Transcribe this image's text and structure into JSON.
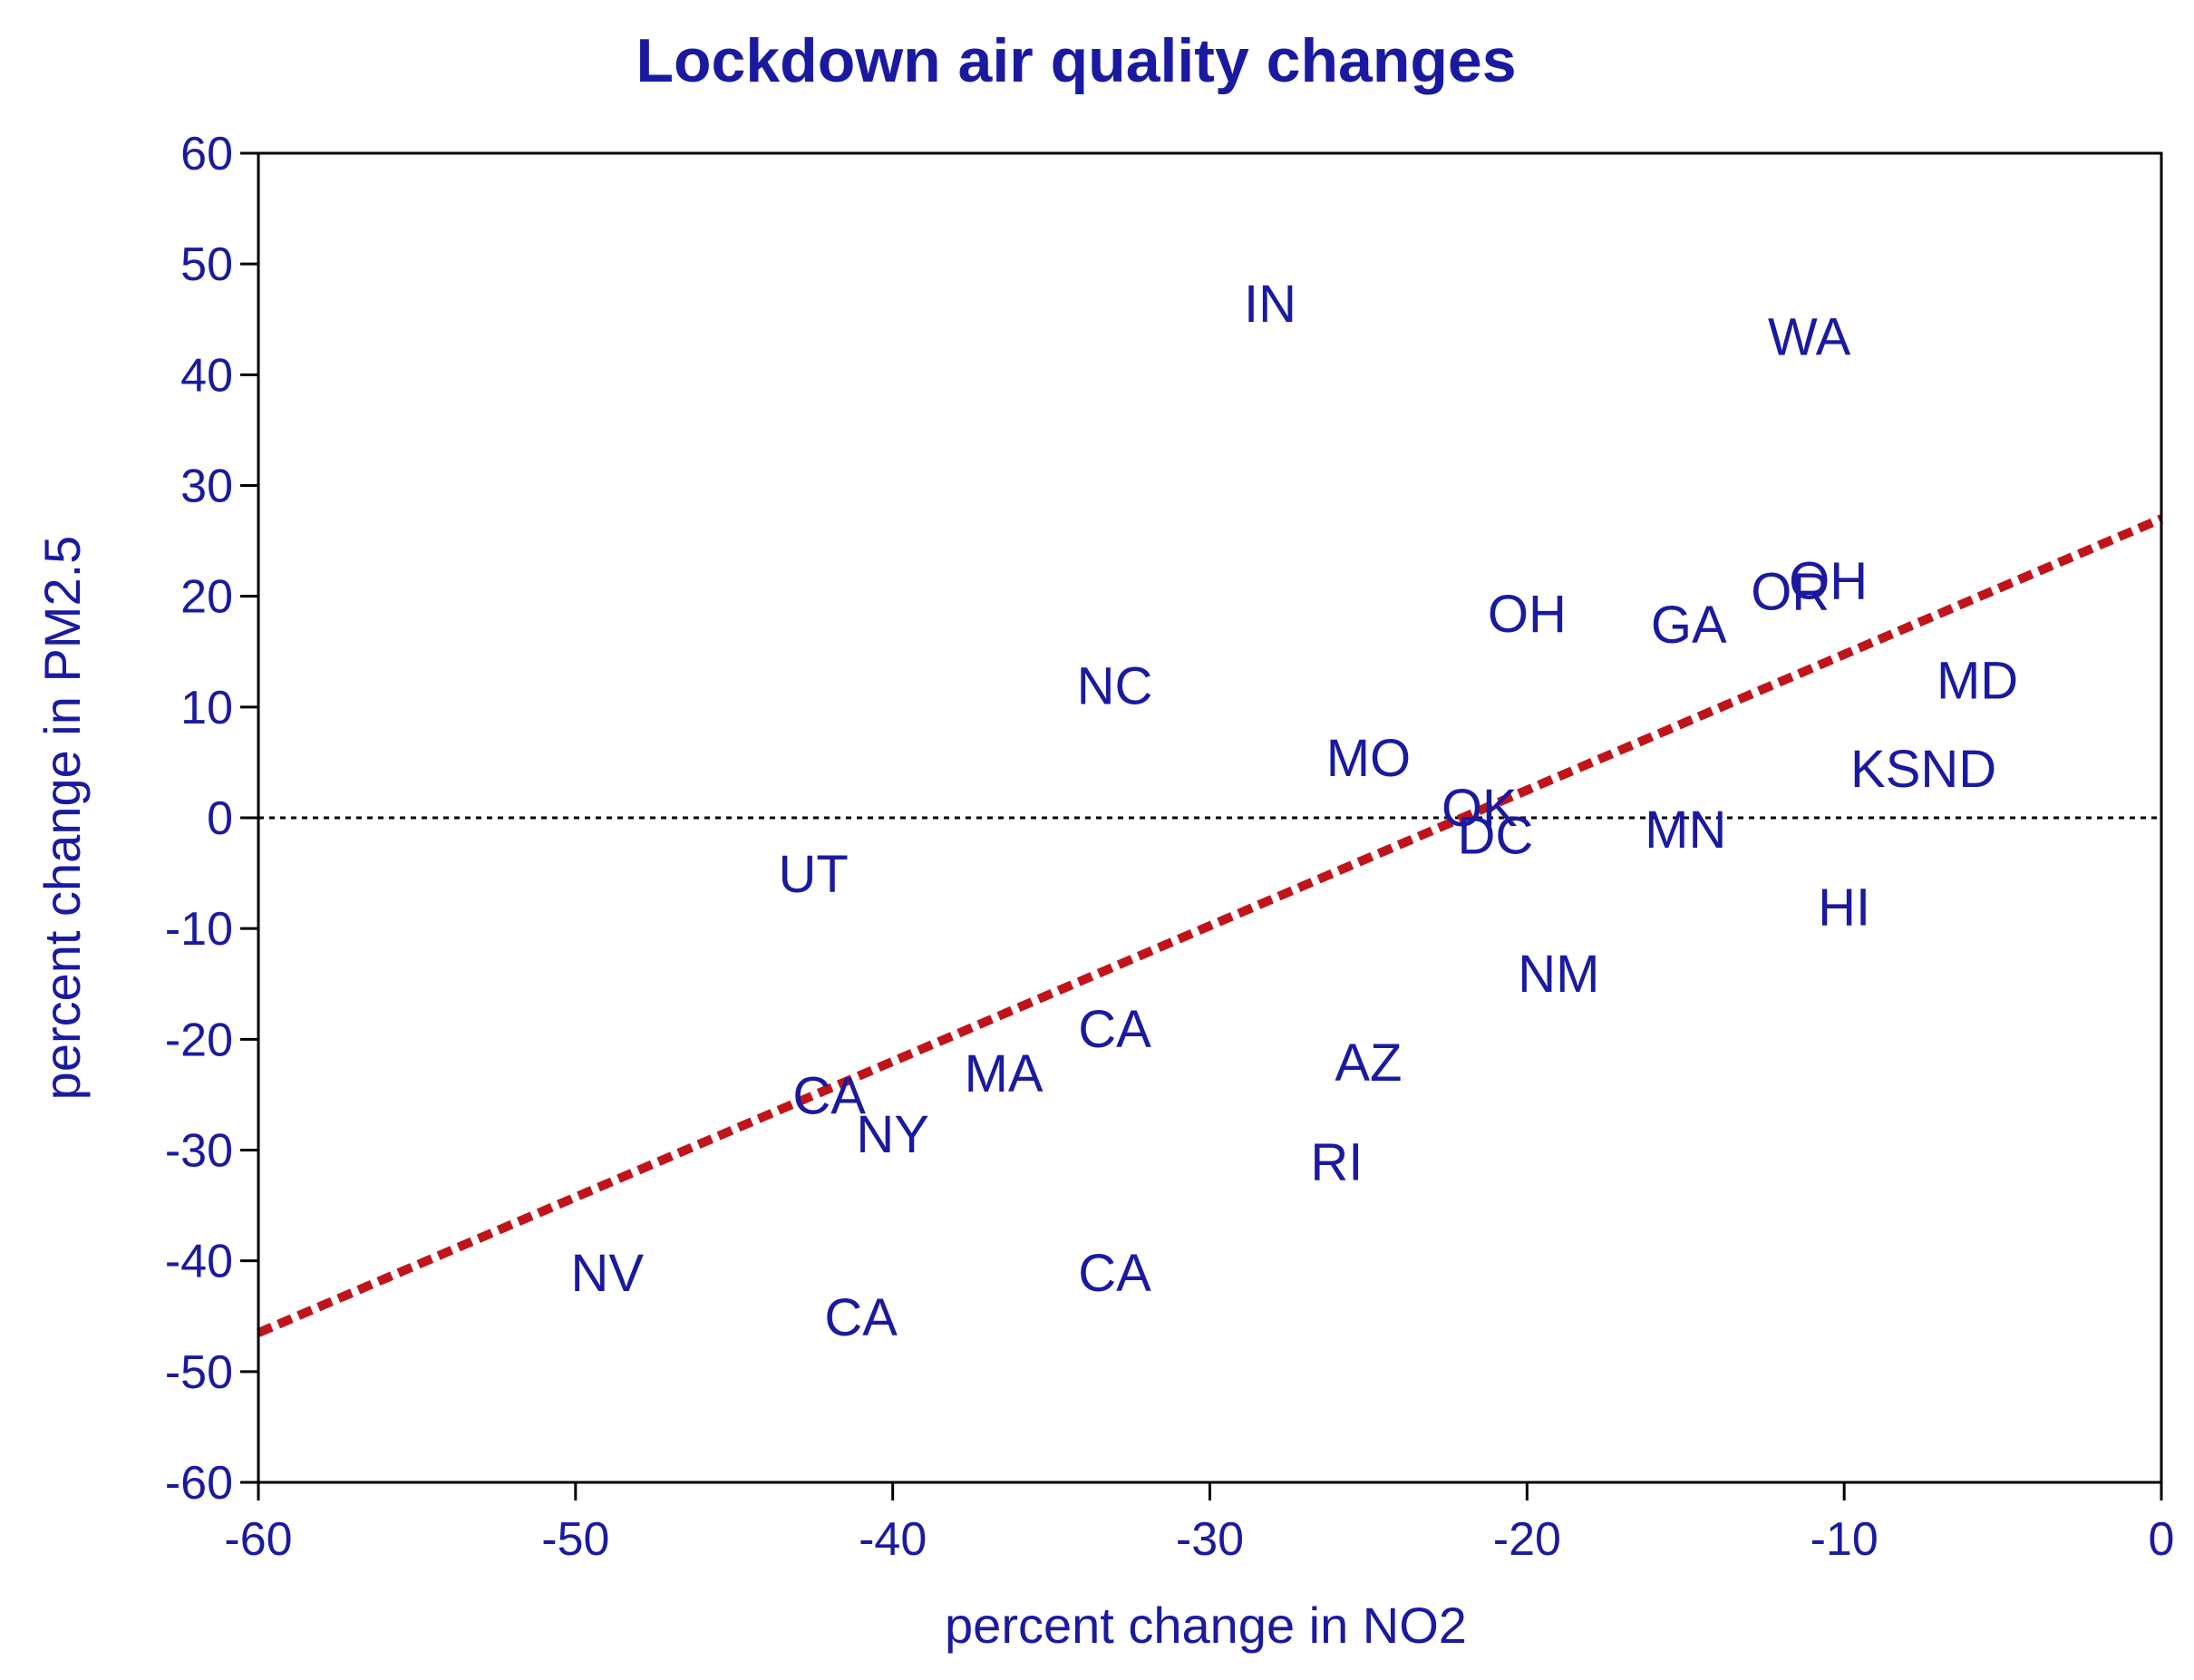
{
  "colors": {
    "text": "#1a1aa0",
    "axis": "#000000",
    "fit_line": "#c0141b",
    "zero_line": "#000000",
    "background": "#ffffff"
  },
  "chart_data": {
    "type": "scatter",
    "title": "Lockdown air quality changes",
    "xlabel": "percent change in NO2",
    "ylabel": "percent change in PM2.5",
    "xlim": [
      -60,
      0
    ],
    "ylim": [
      -60,
      60
    ],
    "xticks": [
      "-60",
      "-50",
      "-40",
      "-30",
      "-20",
      "-10",
      "0"
    ],
    "yticks": [
      "60",
      "50",
      "40",
      "30",
      "20",
      "10",
      "0",
      "-10",
      "-20",
      "-30",
      "-40",
      "-50",
      "-60"
    ],
    "grid": false,
    "marker": "state-abbreviation text labels",
    "points": [
      {
        "label": "IN",
        "x": -28.1,
        "y": 46.5
      },
      {
        "label": "WA",
        "x": -11.1,
        "y": 43.5
      },
      {
        "label": "OR",
        "x": -11.7,
        "y": 20.5
      },
      {
        "label": "OH",
        "x": -10.5,
        "y": 21.5
      },
      {
        "label": "OH",
        "x": -20.0,
        "y": 18.5
      },
      {
        "label": "GA",
        "x": -14.9,
        "y": 17.5
      },
      {
        "label": "MD",
        "x": -5.8,
        "y": 12.5
      },
      {
        "label": "NC",
        "x": -33.0,
        "y": 12.0
      },
      {
        "label": "KSND",
        "x": -7.5,
        "y": 4.5
      },
      {
        "label": "MO",
        "x": -25.0,
        "y": 5.5
      },
      {
        "label": "OK",
        "x": -21.5,
        "y": 1.0
      },
      {
        "label": "DC",
        "x": -21.0,
        "y": -1.5
      },
      {
        "label": "MN",
        "x": -15.0,
        "y": -1.0
      },
      {
        "label": "UT",
        "x": -42.5,
        "y": -5.0
      },
      {
        "label": "HI",
        "x": -10.0,
        "y": -8.0
      },
      {
        "label": "NM",
        "x": -19.0,
        "y": -14.0
      },
      {
        "label": "CA",
        "x": -33.0,
        "y": -19.0
      },
      {
        "label": "AZ",
        "x": -25.0,
        "y": -22.0
      },
      {
        "label": "MA",
        "x": -36.5,
        "y": -23.0
      },
      {
        "label": "CA",
        "x": -42.0,
        "y": -25.0
      },
      {
        "label": "NY",
        "x": -40.0,
        "y": -28.5
      },
      {
        "label": "RI",
        "x": -26.0,
        "y": -31.0
      },
      {
        "label": "NV",
        "x": -49.0,
        "y": -41.0
      },
      {
        "label": "CA",
        "x": -33.0,
        "y": -41.0
      },
      {
        "label": "CA",
        "x": -41.0,
        "y": -45.0
      }
    ],
    "fit_line": {
      "style": "dashed",
      "x": [
        -60,
        0
      ],
      "y": [
        -46.5,
        27.0
      ]
    },
    "reference_line": {
      "style": "dotted",
      "y": 0
    }
  }
}
